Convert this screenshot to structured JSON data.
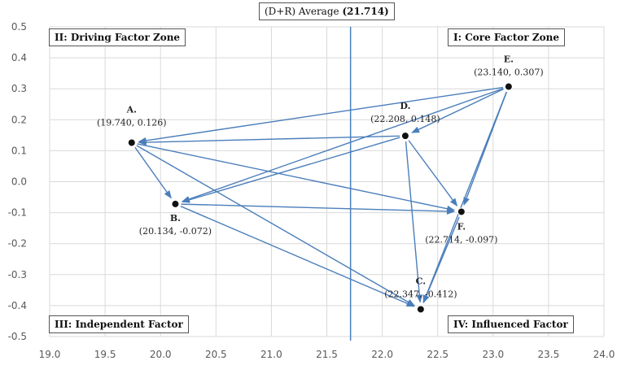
{
  "chart_data": {
    "type": "scatter",
    "xlim": [
      19.0,
      24.0
    ],
    "ylim": [
      -0.5,
      0.5
    ],
    "x_ticks": [
      "19.0",
      "19.5",
      "20.0",
      "20.5",
      "21.0",
      "21.5",
      "22.0",
      "22.5",
      "23.0",
      "23.5",
      "24.0"
    ],
    "y_ticks": [
      "0.5",
      "0.4",
      "0.3",
      "0.2",
      "0.1",
      "0.0",
      "-0.1",
      "-0.2",
      "-0.3",
      "-0.4",
      "-0.5"
    ],
    "grid": true,
    "average_line": {
      "x": 21.714,
      "label_prefix": "(D+R) Average ",
      "label_value": "(21.714)"
    },
    "zones": {
      "core": "I: Core Factor Zone",
      "driving": "II: Driving Factor Zone",
      "independent": "III: Independent Factor",
      "influenced": "IV: Influenced Factor"
    },
    "points": [
      {
        "id": "A",
        "name": "A.",
        "x": 19.74,
        "y": 0.126,
        "label": "(19.740, 0.126)"
      },
      {
        "id": "B",
        "name": "B.",
        "x": 20.134,
        "y": -0.072,
        "label": "(20.134, -0.072)"
      },
      {
        "id": "C",
        "name": "C.",
        "x": 22.347,
        "y": -0.412,
        "label": "(22.347, -0.412)"
      },
      {
        "id": "D",
        "name": "D.",
        "x": 22.208,
        "y": 0.148,
        "label": "(22.208, 0.148)"
      },
      {
        "id": "E",
        "name": "E.",
        "x": 23.14,
        "y": 0.307,
        "label": "(23.140, 0.307)"
      },
      {
        "id": "F",
        "name": "F.",
        "x": 22.714,
        "y": -0.097,
        "label": "(22.714, -0.097)"
      }
    ],
    "edges": [
      [
        "E",
        "A"
      ],
      [
        "E",
        "D"
      ],
      [
        "E",
        "F"
      ],
      [
        "E",
        "B"
      ],
      [
        "E",
        "C"
      ],
      [
        "D",
        "A"
      ],
      [
        "D",
        "B"
      ],
      [
        "D",
        "F"
      ],
      [
        "D",
        "C"
      ],
      [
        "A",
        "B"
      ],
      [
        "A",
        "F"
      ],
      [
        "A",
        "C"
      ],
      [
        "B",
        "F"
      ],
      [
        "B",
        "C"
      ],
      [
        "F",
        "C"
      ]
    ]
  },
  "colors": {
    "arrow": "#4a7ebb",
    "grid": "#d9d9d9",
    "avg_line": "#4a7ebb",
    "point": "#111111"
  }
}
